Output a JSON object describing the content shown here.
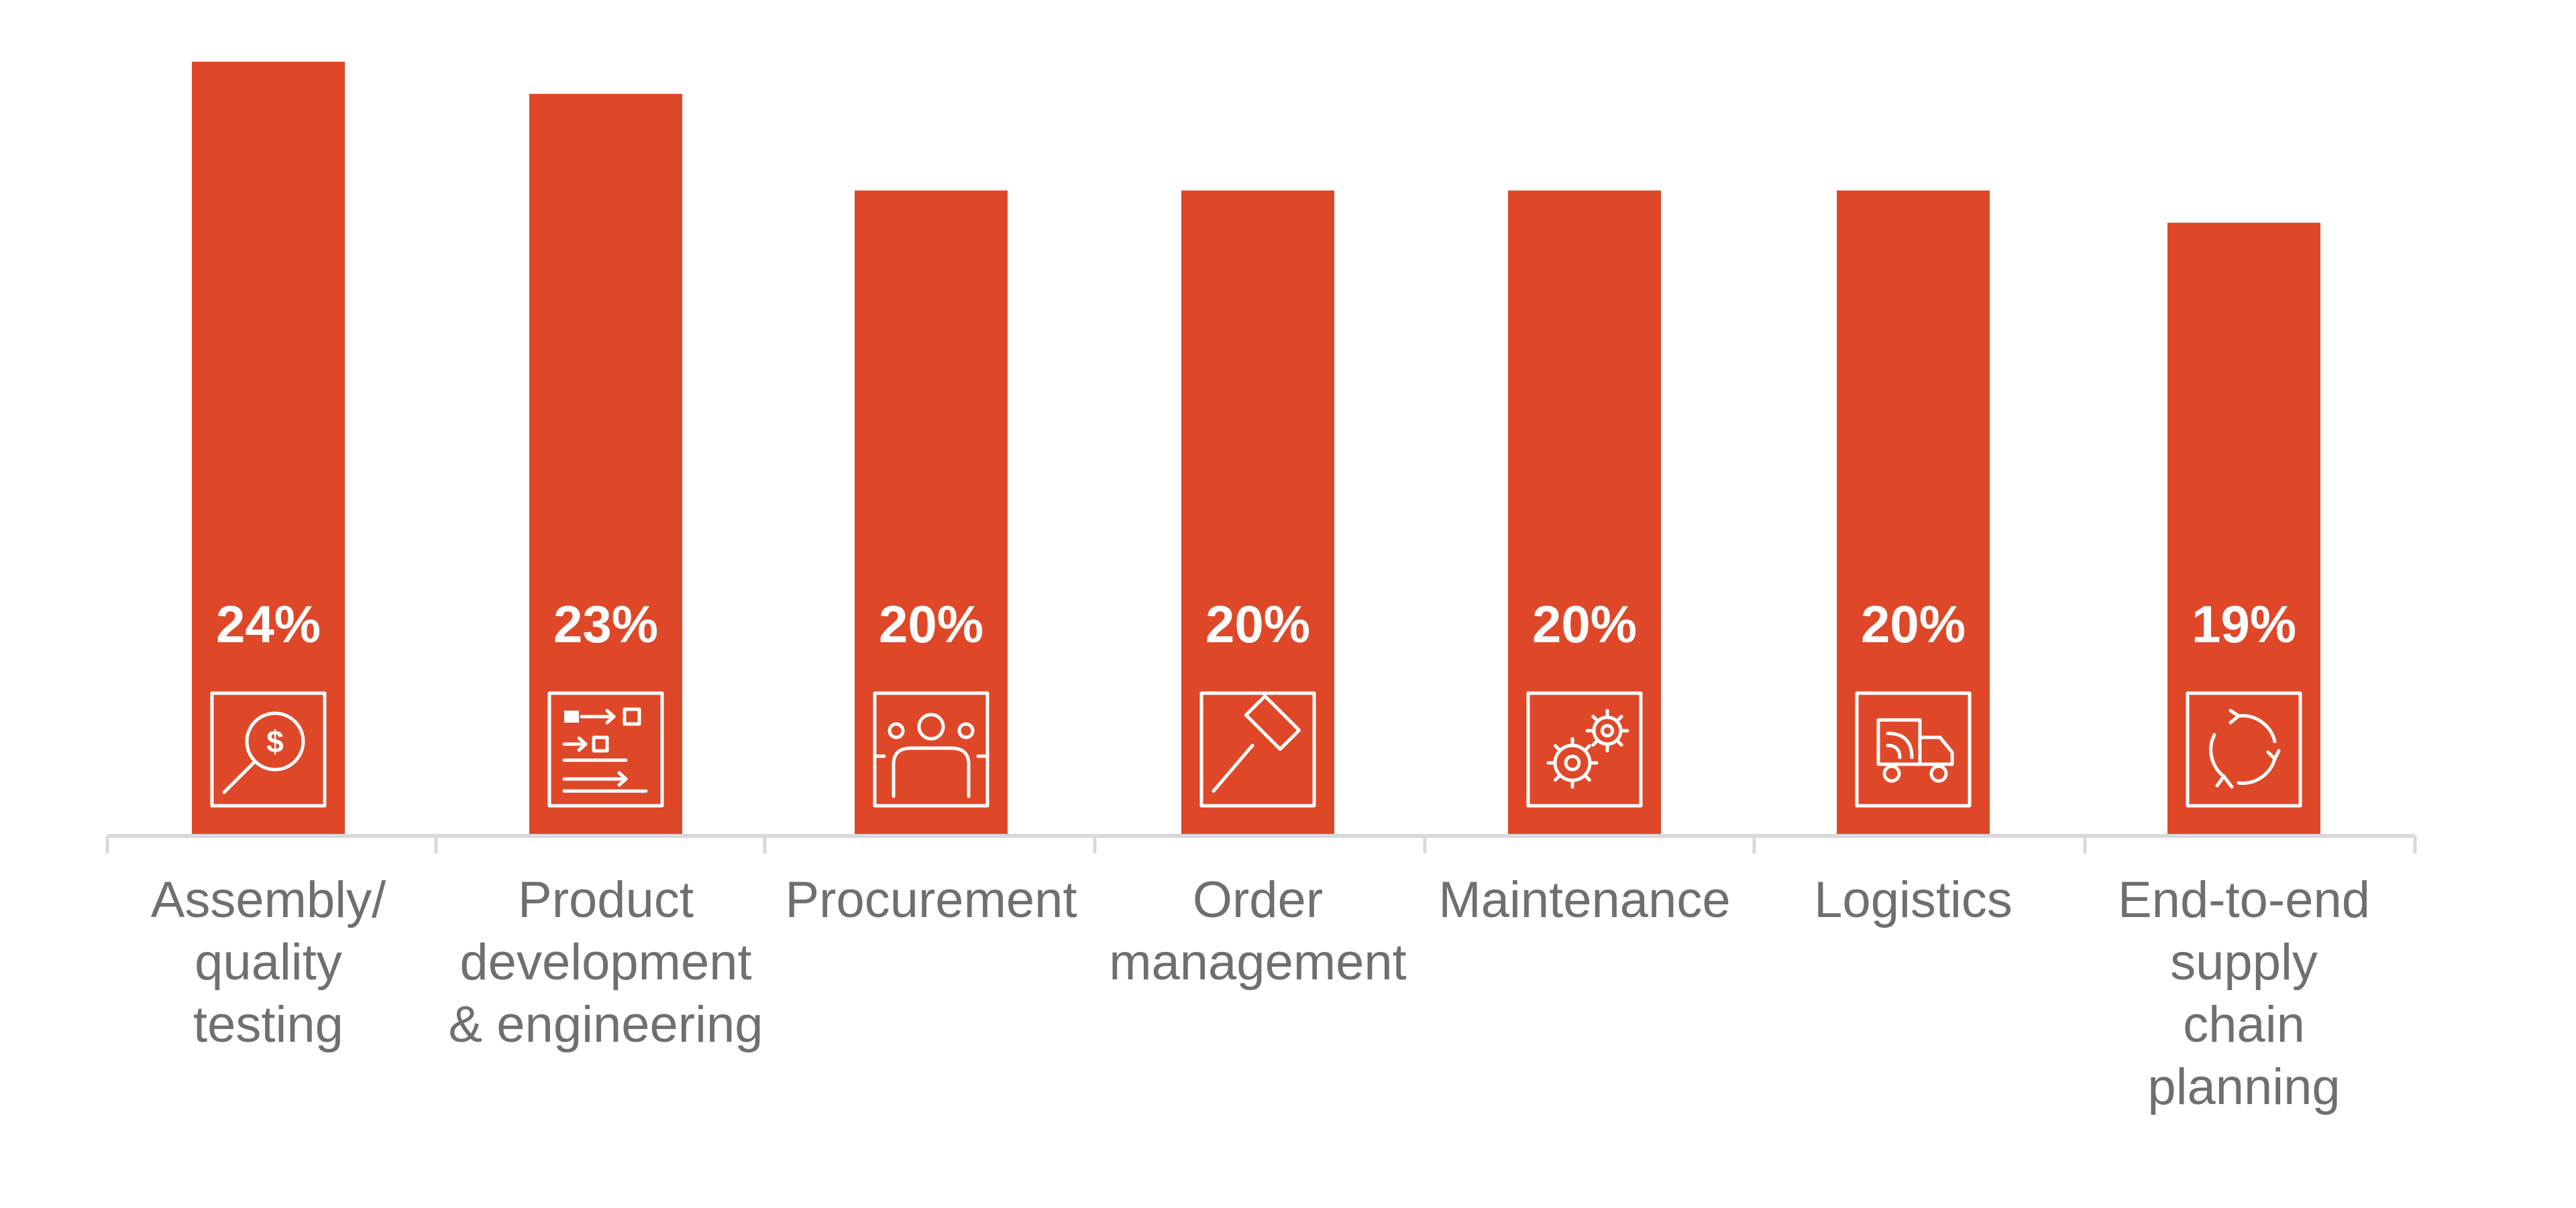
{
  "chart_data": {
    "type": "bar",
    "categories": [
      "Assembly/ quality testing",
      "Product development & engineering",
      "Procurement",
      "Order management",
      "Maintenance",
      "Logistics",
      "End-to-end supply chain planning"
    ],
    "category_label_lines": [
      [
        "Assembly/",
        "quality",
        "testing"
      ],
      [
        "Product",
        "development",
        "& engineering"
      ],
      [
        "Procurement"
      ],
      [
        "Order",
        "management"
      ],
      [
        "Maintenance"
      ],
      [
        "Logistics"
      ],
      [
        "End-to-end",
        "supply",
        "chain",
        "planning"
      ]
    ],
    "values": [
      24,
      23,
      20,
      20,
      20,
      20,
      19
    ],
    "value_labels": [
      "24%",
      "23%",
      "20%",
      "20%",
      "20%",
      "20%",
      "19%"
    ],
    "icons": [
      "magnifier-dollar-icon",
      "process-flow-icon",
      "people-group-icon",
      "gavel-icon",
      "gears-icon",
      "delivery-truck-icon",
      "cycle-arrows-icon"
    ],
    "title": "",
    "xlabel": "",
    "ylabel": "",
    "ylim": [
      0,
      24
    ],
    "grid": false,
    "legend": "none",
    "colors": {
      "bar": "#de4828",
      "axis": "#d9d9d9",
      "label_text": "#6f6f6f",
      "value_text": "#ffffff"
    }
  }
}
